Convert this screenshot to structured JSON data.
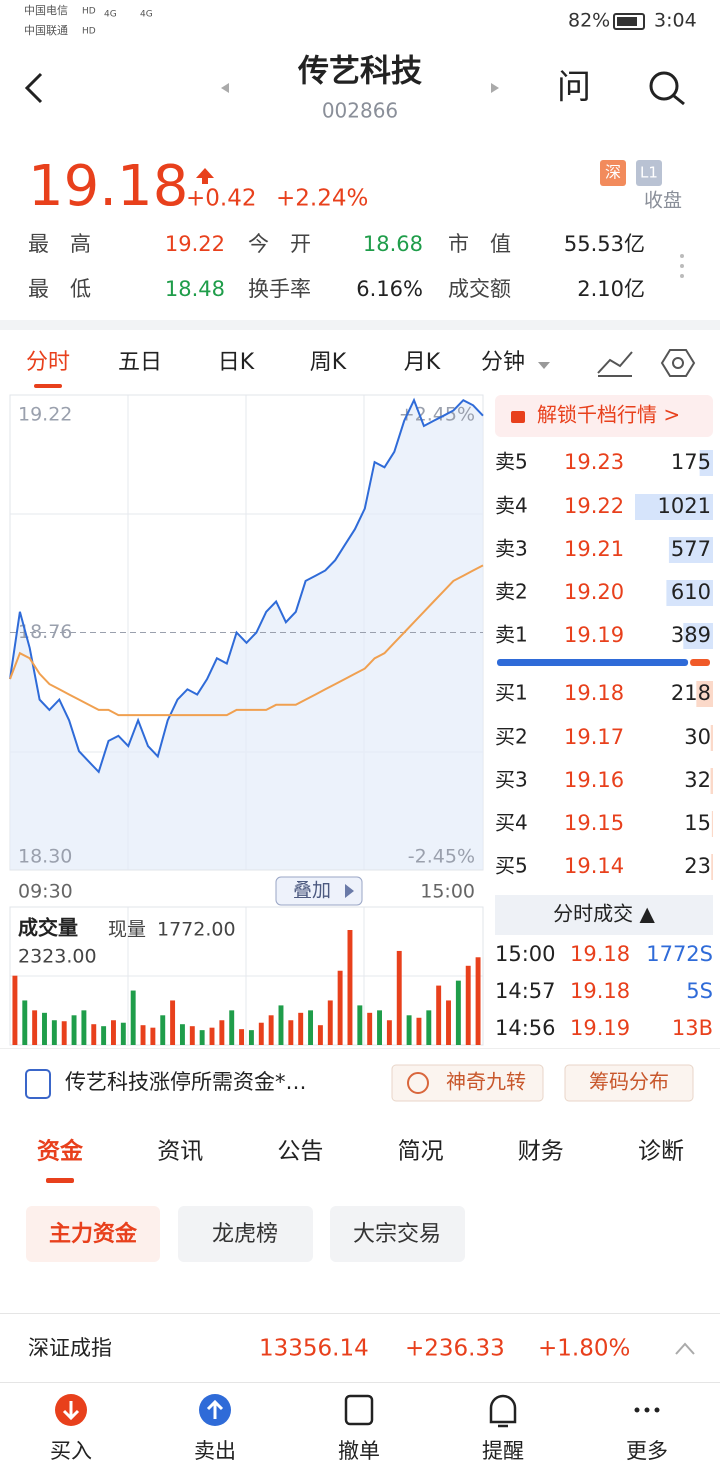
{
  "status_bar": {
    "carriers": [
      "中国电信",
      "中国联通"
    ],
    "hd": "HD",
    "network": "4G",
    "battery": "82%",
    "time": "3:04"
  },
  "header": {
    "title": "传艺科技",
    "code": "002866",
    "ask": "问"
  },
  "quote": {
    "price": "19.18",
    "change": "+0.42",
    "change_pct": "+2.24%",
    "exchange": "深",
    "level": "L1",
    "state": "收盘",
    "stats": [
      {
        "label": "最　高",
        "value": "19.22"
      },
      {
        "label": "今　开",
        "value": "18.68"
      },
      {
        "label": "市　值",
        "value": "55.53亿"
      },
      {
        "label": "最　低",
        "value": "18.48"
      },
      {
        "label": "换手率",
        "value": "6.16%"
      },
      {
        "label": "成交额",
        "value": "2.10亿"
      }
    ]
  },
  "tabs": [
    "分时",
    "五日",
    "日K",
    "周K",
    "月K",
    "分钟"
  ],
  "chart_data": [
    {
      "type": "line",
      "overlay_button": "叠加",
      "grid": true,
      "x": [
        0,
        5,
        10,
        15,
        20,
        25,
        30,
        35,
        40,
        45,
        50,
        55,
        60,
        65,
        70,
        75,
        80,
        85,
        90,
        95,
        100,
        105,
        110,
        115,
        120,
        125,
        130,
        135,
        140,
        145,
        150,
        155,
        160,
        165,
        170,
        175,
        180,
        185,
        190,
        195,
        200,
        205,
        210,
        215,
        220,
        225,
        230,
        235,
        240
      ],
      "xlim": [
        0,
        240
      ],
      "xticks": [
        {
          "value": 0,
          "label": "09:30"
        },
        {
          "value": 240,
          "label": "15:00"
        }
      ],
      "ylim": [
        18.3,
        19.22
      ],
      "yticks": [
        {
          "value": 18.3,
          "label": "18.30"
        },
        18.76,
        19.22
      ],
      "y2lim": [
        -2.45,
        2.45
      ],
      "y2ticks": [
        {
          "value": -2.45,
          "label": "-2.45%"
        },
        {
          "value": 2.45,
          "label": "+2.45%"
        }
      ],
      "series": [
        {
          "color": "#2f6bd8",
          "values": [
            18.67,
            18.8,
            18.73,
            18.63,
            18.61,
            18.63,
            18.59,
            18.53,
            18.51,
            18.49,
            18.55,
            18.56,
            18.54,
            18.59,
            18.54,
            18.52,
            18.59,
            18.63,
            18.65,
            18.64,
            18.67,
            18.71,
            18.7,
            18.76,
            18.74,
            18.76,
            18.8,
            18.82,
            18.78,
            18.8,
            18.86,
            18.87,
            18.88,
            18.9,
            18.93,
            18.96,
            19.0,
            19.09,
            19.08,
            19.11,
            19.17,
            19.21,
            19.16,
            19.17,
            19.18,
            19.19,
            19.21,
            19.2,
            19.18
          ]
        },
        {
          "color": "#f0a050",
          "values": [
            18.67,
            18.72,
            18.71,
            18.68,
            18.66,
            18.65,
            18.64,
            18.63,
            18.62,
            18.61,
            18.61,
            18.6,
            18.6,
            18.6,
            18.6,
            18.6,
            18.6,
            18.6,
            18.6,
            18.6,
            18.6,
            18.6,
            18.6,
            18.61,
            18.61,
            18.61,
            18.61,
            18.62,
            18.62,
            18.62,
            18.63,
            18.64,
            18.65,
            18.66,
            18.67,
            18.68,
            18.69,
            18.71,
            18.72,
            18.74,
            18.76,
            18.78,
            18.8,
            18.82,
            18.84,
            18.86,
            18.87,
            18.88,
            18.89
          ]
        }
      ]
    },
    {
      "type": "bar",
      "title": "成交量",
      "current": {
        "label": "现量",
        "value": "1772.00"
      },
      "ylim": [
        0,
        2323
      ],
      "yticks": [
        {
          "value": 2323,
          "label": "2323.00"
        }
      ],
      "values": [
        1400,
        900,
        700,
        650,
        500,
        480,
        600,
        700,
        420,
        380,
        500,
        450,
        1100,
        400,
        350,
        600,
        900,
        420,
        380,
        300,
        350,
        500,
        700,
        320,
        300,
        450,
        600,
        800,
        500,
        650,
        700,
        400,
        900,
        1500,
        2323,
        800,
        650,
        700,
        500,
        1900,
        600,
        550,
        700,
        1200,
        900,
        1300,
        1600,
        1772
      ],
      "colors": [
        "#e8401c",
        "#1f9d4a",
        "#e8401c",
        "#1f9d4a",
        "#1f9d4a",
        "#e8401c",
        "#1f9d4a",
        "#1f9d4a",
        "#e8401c",
        "#1f9d4a",
        "#e8401c",
        "#1f9d4a",
        "#1f9d4a",
        "#e8401c",
        "#e8401c",
        "#1f9d4a",
        "#e8401c",
        "#1f9d4a",
        "#e8401c",
        "#1f9d4a",
        "#e8401c",
        "#e8401c",
        "#1f9d4a",
        "#e8401c",
        "#1f9d4a",
        "#e8401c",
        "#e8401c",
        "#1f9d4a",
        "#e8401c",
        "#e8401c",
        "#1f9d4a",
        "#e8401c",
        "#e8401c",
        "#e8401c",
        "#e8401c",
        "#1f9d4a",
        "#e8401c",
        "#1f9d4a",
        "#e8401c",
        "#e8401c",
        "#1f9d4a",
        "#e8401c",
        "#1f9d4a",
        "#e8401c",
        "#e8401c",
        "#1f9d4a",
        "#e8401c",
        "#e8401c"
      ]
    }
  ],
  "order_book": {
    "unlock": "解锁千档行情 >",
    "asks": [
      {
        "label": "卖5",
        "price": "19.23",
        "volume": 175
      },
      {
        "label": "卖4",
        "price": "19.22",
        "volume": 1021
      },
      {
        "label": "卖3",
        "price": "19.21",
        "volume": 577
      },
      {
        "label": "卖2",
        "price": "19.20",
        "volume": 610
      },
      {
        "label": "卖1",
        "price": "19.19",
        "volume": 389
      }
    ],
    "bids": [
      {
        "label": "买1",
        "price": "19.18",
        "volume": 218
      },
      {
        "label": "买2",
        "price": "19.17",
        "volume": 30
      },
      {
        "label": "买3",
        "price": "19.16",
        "volume": 32
      },
      {
        "label": "买4",
        "price": "19.15",
        "volume": 15
      },
      {
        "label": "买5",
        "price": "19.14",
        "volume": 23
      }
    ]
  },
  "trades": {
    "title": "分时成交 ▲",
    "rows": [
      {
        "time": "15:00",
        "price": "19.18",
        "volume": "1772S"
      },
      {
        "time": "14:57",
        "price": "19.18",
        "volume": "5S"
      },
      {
        "time": "14:56",
        "price": "19.19",
        "volume": "13B"
      }
    ]
  },
  "news": {
    "text": "传艺科技涨停所需资金*…",
    "buttons": [
      "神奇九转",
      "筹码分布"
    ]
  },
  "sections": [
    "资金",
    "资讯",
    "公告",
    "简况",
    "财务",
    "诊断"
  ],
  "sub_tabs": [
    "主力资金",
    "龙虎榜",
    "大宗交易"
  ],
  "index_bar": {
    "name": "深证成指",
    "value": "13356.14",
    "change": "+236.33",
    "change_pct": "+1.80%"
  },
  "nav": [
    "买入",
    "卖出",
    "撤单",
    "提醒",
    "更多"
  ]
}
